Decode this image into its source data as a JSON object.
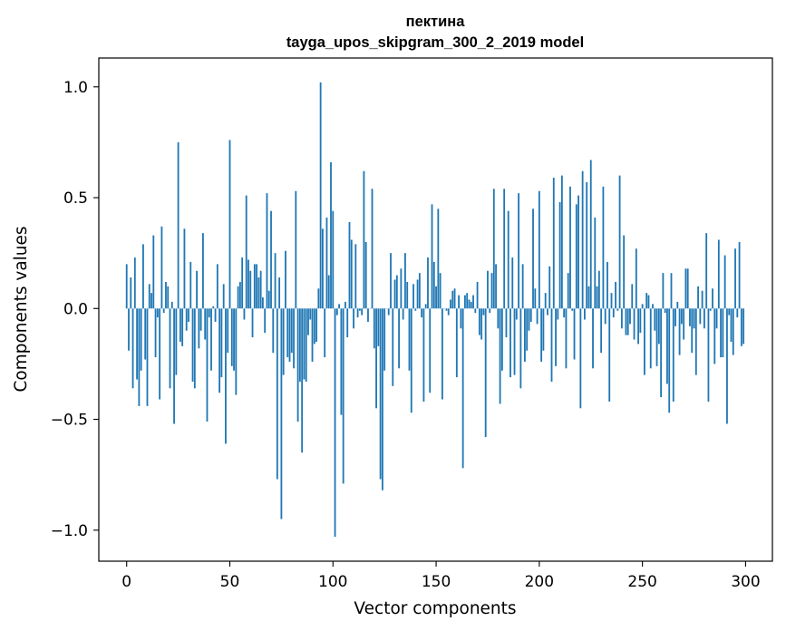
{
  "chart_data": {
    "type": "bar",
    "title": "пектина",
    "subtitle": "tayga_upos_skipgram_300_2_2019 model",
    "xlabel": "Vector components",
    "ylabel": "Components values",
    "xlim": [
      -13.5,
      313
    ],
    "ylim": [
      -1.14,
      1.13
    ],
    "xticks": [
      0,
      50,
      100,
      150,
      200,
      250,
      300
    ],
    "xtick_labels": [
      "0",
      "50",
      "100",
      "150",
      "200",
      "250",
      "300"
    ],
    "yticks": [
      -1.0,
      -0.5,
      0.0,
      0.5,
      1.0
    ],
    "ytick_labels": [
      "−1.0",
      "−0.5",
      "0.0",
      "0.5",
      "1.0"
    ],
    "grid": false,
    "bar_color": "#1f77b4",
    "values": [
      0.2,
      -0.19,
      0.14,
      -0.36,
      0.23,
      -0.32,
      -0.44,
      -0.28,
      0.29,
      -0.23,
      -0.44,
      0.11,
      0.07,
      0.33,
      -0.22,
      -0.04,
      -0.41,
      0.37,
      -0.02,
      0.12,
      0.1,
      -0.36,
      0.03,
      -0.52,
      -0.3,
      0.75,
      -0.15,
      -0.17,
      0.36,
      -0.1,
      -0.06,
      0.21,
      -0.33,
      -0.36,
      0.17,
      -0.18,
      -0.1,
      0.34,
      -0.14,
      -0.51,
      -0.04,
      -0.28,
      0.01,
      -0.06,
      0.2,
      -0.38,
      -0.31,
      0.11,
      -0.61,
      -0.2,
      0.76,
      -0.26,
      -0.28,
      -0.39,
      0.1,
      0.12,
      0.23,
      -0.05,
      0.51,
      0.22,
      0.17,
      -0.13,
      0.2,
      0.2,
      0.14,
      0.17,
      0.05,
      -0.11,
      0.52,
      0.08,
      0.44,
      -0.2,
      0.25,
      -0.77,
      0.14,
      -0.95,
      -0.3,
      0.26,
      -0.22,
      -0.24,
      -0.2,
      -0.27,
      0.53,
      -0.51,
      -0.33,
      -0.65,
      -0.32,
      -0.33,
      -0.12,
      -0.05,
      -0.24,
      -0.16,
      -0.15,
      0.09,
      1.02,
      0.36,
      -0.22,
      0.41,
      0.15,
      0.66,
      0.44,
      -1.03,
      -0.03,
      0.02,
      -0.48,
      -0.79,
      0.03,
      -0.13,
      0.39,
      0.31,
      -0.09,
      0.29,
      -0.04,
      -0.01,
      -0.03,
      0.62,
      0.3,
      -0.06,
      0.0,
      0.54,
      -0.18,
      -0.45,
      -0.17,
      -0.77,
      -0.82,
      -0.28,
      0.0,
      -0.03,
      0.25,
      -0.35,
      0.13,
      0.15,
      -0.27,
      0.18,
      -0.05,
      0.25,
      0.12,
      -0.28,
      -0.47,
      0.11,
      -0.01,
      0.13,
      0.16,
      -0.04,
      -0.42,
      0.02,
      0.23,
      -0.38,
      0.47,
      0.21,
      0.1,
      0.45,
      0.16,
      -0.41,
      0.0,
      -0.01,
      -0.03,
      0.04,
      0.08,
      0.09,
      -0.31,
      0.06,
      -0.09,
      -0.72,
      0.06,
      0.07,
      0.04,
      0.03,
      0.06,
      -0.02,
      0.12,
      -0.12,
      -0.14,
      -0.03,
      -0.58,
      0.17,
      -0.02,
      0.16,
      0.54,
      0.2,
      -0.09,
      -0.43,
      -0.28,
      0.54,
      -0.13,
      0.44,
      -0.31,
      0.23,
      -0.3,
      -0.05,
      0.52,
      -0.36,
      0.2,
      -0.24,
      -0.19,
      -0.1,
      -0.06,
      0.45,
      0.09,
      -0.07,
      0.53,
      -0.24,
      -0.19,
      0.07,
      -0.03,
      0.19,
      -0.33,
      0.59,
      -0.26,
      -0.05,
      0.48,
      0.6,
      -0.04,
      -0.27,
      0.16,
      0.55,
      -0.01,
      -0.23,
      0.47,
      0.51,
      -0.45,
      0.62,
      -0.05,
      0.57,
      0.1,
      0.67,
      -0.27,
      0.41,
      0.1,
      0.17,
      -0.2,
      0.55,
      -0.07,
      0.21,
      -0.42,
      0.07,
      -0.04,
      0.12,
      -0.01,
      0.6,
      -0.09,
      0.33,
      -0.12,
      -0.12,
      -0.07,
      0.11,
      -0.14,
      0.27,
      -0.16,
      -0.11,
      0.02,
      -0.3,
      0.07,
      0.06,
      -0.27,
      0.02,
      -0.1,
      -0.26,
      -0.16,
      -0.4,
      0.16,
      -0.02,
      -0.34,
      -0.47,
      0.16,
      -0.42,
      -0.08,
      0.03,
      -0.21,
      -0.07,
      -0.14,
      0.18,
      0.18,
      -0.08,
      -0.2,
      -0.09,
      -0.3,
      0.1,
      -0.07,
      0.08,
      -0.09,
      0.34,
      -0.42,
      -0.01,
      0.09,
      -0.25,
      -0.09,
      0.31,
      -0.22,
      -0.22,
      0.24,
      -0.52,
      -0.03,
      -0.15,
      -0.21,
      0.27,
      -0.04,
      0.3,
      -0.17,
      -0.16
    ]
  }
}
